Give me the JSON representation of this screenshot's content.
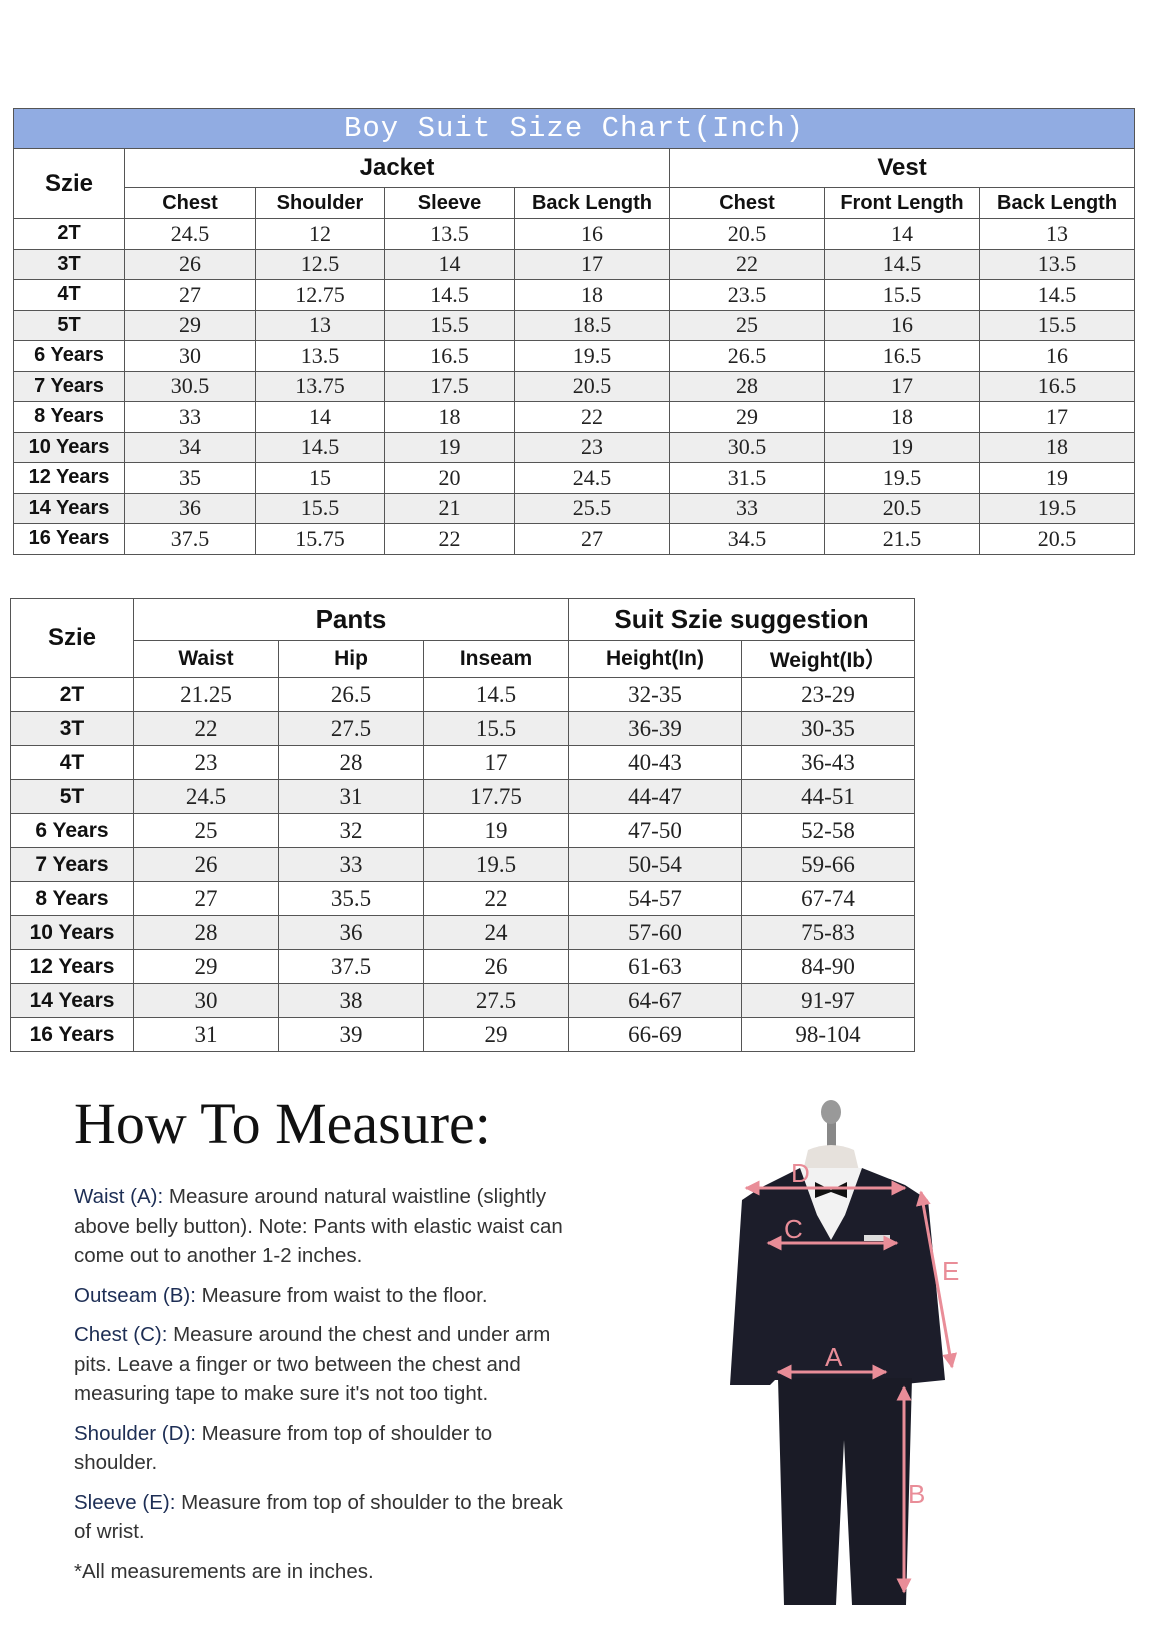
{
  "title": "Boy Suit Size Chart(Inch)",
  "table1": {
    "size_header": "Szie",
    "groups": [
      {
        "label": "Jacket",
        "columns": [
          "Chest",
          "Shoulder",
          "Sleeve",
          "Back Length"
        ]
      },
      {
        "label": "Vest",
        "columns": [
          "Chest",
          "Front Length",
          "Back Length"
        ]
      }
    ],
    "rows": [
      [
        "2T",
        "24.5",
        "12",
        "13.5",
        "16",
        "20.5",
        "14",
        "13"
      ],
      [
        "3T",
        "26",
        "12.5",
        "14",
        "17",
        "22",
        "14.5",
        "13.5"
      ],
      [
        "4T",
        "27",
        "12.75",
        "14.5",
        "18",
        "23.5",
        "15.5",
        "14.5"
      ],
      [
        "5T",
        "29",
        "13",
        "15.5",
        "18.5",
        "25",
        "16",
        "15.5"
      ],
      [
        "6 Years",
        "30",
        "13.5",
        "16.5",
        "19.5",
        "26.5",
        "16.5",
        "16"
      ],
      [
        "7 Years",
        "30.5",
        "13.75",
        "17.5",
        "20.5",
        "28",
        "17",
        "16.5"
      ],
      [
        "8 Years",
        "33",
        "14",
        "18",
        "22",
        "29",
        "18",
        "17"
      ],
      [
        "10 Years",
        "34",
        "14.5",
        "19",
        "23",
        "30.5",
        "19",
        "18"
      ],
      [
        "12 Years",
        "35",
        "15",
        "20",
        "24.5",
        "31.5",
        "19.5",
        "19"
      ],
      [
        "14 Years",
        "36",
        "15.5",
        "21",
        "25.5",
        "33",
        "20.5",
        "19.5"
      ],
      [
        "16 Years",
        "37.5",
        "15.75",
        "22",
        "27",
        "34.5",
        "21.5",
        "20.5"
      ]
    ]
  },
  "table2": {
    "size_header": "Szie",
    "groups": [
      {
        "label": "Pants",
        "columns": [
          "Waist",
          "Hip",
          "Inseam"
        ]
      },
      {
        "label": "Suit Szie suggestion",
        "columns": [
          "Height(In)",
          "Weight(Ib）"
        ]
      }
    ],
    "rows": [
      [
        "2T",
        "21.25",
        "26.5",
        "14.5",
        "32-35",
        "23-29"
      ],
      [
        "3T",
        "22",
        "27.5",
        "15.5",
        "36-39",
        "30-35"
      ],
      [
        "4T",
        "23",
        "28",
        "17",
        "40-43",
        "36-43"
      ],
      [
        "5T",
        "24.5",
        "31",
        "17.75",
        "44-47",
        "44-51"
      ],
      [
        "6 Years",
        "25",
        "32",
        "19",
        "47-50",
        "52-58"
      ],
      [
        "7 Years",
        "26",
        "33",
        "19.5",
        "50-54",
        "59-66"
      ],
      [
        "8 Years",
        "27",
        "35.5",
        "22",
        "54-57",
        "67-74"
      ],
      [
        "10 Years",
        "28",
        "36",
        "24",
        "57-60",
        "75-83"
      ],
      [
        "12 Years",
        "29",
        "37.5",
        "26",
        "61-63",
        "84-90"
      ],
      [
        "14 Years",
        "30",
        "38",
        "27.5",
        "64-67",
        "91-97"
      ],
      [
        "16 Years",
        "31",
        "39",
        "29",
        "66-69",
        "98-104"
      ]
    ]
  },
  "measure": {
    "heading": "How To Measure:",
    "items": [
      {
        "label": "Waist (A):",
        "text": "Measure around natural waistline (slightly above belly button). Note: Pants with elastic waist can come out to another 1-2 inches."
      },
      {
        "label": "Outseam (B):",
        "text": "Measure from waist to the floor."
      },
      {
        "label": "Chest (C):",
        "text": "Measure around the chest and under arm pits. Leave a finger or two between the chest and measuring tape to make sure it's not too tight."
      },
      {
        "label": "Shoulder (D):",
        "text": "Measure from top of shoulder to shoulder."
      },
      {
        "label": "Sleeve (E):",
        "text": "Measure from top of shoulder to the break of wrist."
      }
    ],
    "note": "*All measurements are in inches."
  },
  "figure": {
    "labels": [
      "D",
      "C",
      "A",
      "E",
      "B"
    ]
  }
}
